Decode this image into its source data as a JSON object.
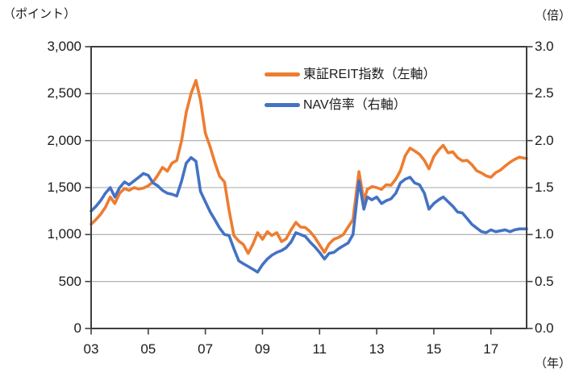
{
  "chart_data": {
    "type": "line",
    "title": "",
    "x": [
      2003.0,
      2003.17,
      2003.33,
      2003.5,
      2003.67,
      2003.83,
      2004.0,
      2004.17,
      2004.33,
      2004.5,
      2004.67,
      2004.83,
      2005.0,
      2005.17,
      2005.33,
      2005.5,
      2005.67,
      2005.83,
      2006.0,
      2006.17,
      2006.33,
      2006.5,
      2006.67,
      2006.83,
      2007.0,
      2007.17,
      2007.33,
      2007.5,
      2007.67,
      2007.83,
      2008.0,
      2008.17,
      2008.33,
      2008.5,
      2008.67,
      2008.83,
      2009.0,
      2009.17,
      2009.33,
      2009.5,
      2009.67,
      2009.83,
      2010.0,
      2010.17,
      2010.33,
      2010.5,
      2010.67,
      2010.83,
      2011.0,
      2011.17,
      2011.33,
      2011.5,
      2011.67,
      2011.83,
      2012.0,
      2012.17,
      2012.38,
      2012.55,
      2012.67,
      2012.83,
      2013.0,
      2013.17,
      2013.33,
      2013.5,
      2013.67,
      2013.83,
      2014.0,
      2014.17,
      2014.33,
      2014.5,
      2014.67,
      2014.83,
      2015.0,
      2015.17,
      2015.33,
      2015.5,
      2015.67,
      2015.83,
      2016.0,
      2016.17,
      2016.33,
      2016.5,
      2016.67,
      2016.83,
      2017.0,
      2017.17,
      2017.33,
      2017.5,
      2017.67,
      2017.83,
      2018.0,
      2018.13,
      2018.25
    ],
    "series": [
      {
        "name": "東証REIT指数（左軸）",
        "axis": "left",
        "color": "#ED7D31",
        "values": [
          1110,
          1160,
          1215,
          1290,
          1400,
          1330,
          1440,
          1490,
          1470,
          1500,
          1485,
          1495,
          1520,
          1560,
          1630,
          1715,
          1675,
          1760,
          1790,
          2000,
          2300,
          2500,
          2641,
          2430,
          2080,
          1930,
          1770,
          1620,
          1560,
          1260,
          990,
          930,
          895,
          800,
          900,
          1020,
          950,
          1030,
          990,
          1020,
          925,
          955,
          1050,
          1130,
          1080,
          1075,
          1030,
          970,
          890,
          810,
          900,
          950,
          970,
          1000,
          1080,
          1160,
          1670,
          1360,
          1480,
          1510,
          1500,
          1480,
          1530,
          1525,
          1590,
          1680,
          1840,
          1920,
          1890,
          1855,
          1790,
          1700,
          1830,
          1900,
          1950,
          1870,
          1880,
          1820,
          1785,
          1790,
          1745,
          1680,
          1655,
          1625,
          1610,
          1660,
          1685,
          1730,
          1770,
          1800,
          1825,
          1815,
          1810
        ]
      },
      {
        "name": "NAV倍率（右軸）",
        "axis": "right",
        "color": "#4472C4",
        "values": [
          1.25,
          1.3,
          1.36,
          1.44,
          1.5,
          1.4,
          1.5,
          1.56,
          1.53,
          1.57,
          1.61,
          1.65,
          1.63,
          1.55,
          1.52,
          1.47,
          1.44,
          1.43,
          1.41,
          1.57,
          1.76,
          1.82,
          1.78,
          1.46,
          1.35,
          1.24,
          1.16,
          1.07,
          1.0,
          0.99,
          0.85,
          0.72,
          0.69,
          0.66,
          0.63,
          0.6,
          0.68,
          0.74,
          0.78,
          0.81,
          0.83,
          0.86,
          0.92,
          1.02,
          1.0,
          0.98,
          0.92,
          0.87,
          0.81,
          0.74,
          0.8,
          0.81,
          0.85,
          0.88,
          0.91,
          1.0,
          1.57,
          1.27,
          1.4,
          1.37,
          1.4,
          1.33,
          1.36,
          1.38,
          1.44,
          1.55,
          1.59,
          1.61,
          1.55,
          1.53,
          1.44,
          1.27,
          1.33,
          1.37,
          1.4,
          1.35,
          1.3,
          1.24,
          1.23,
          1.17,
          1.11,
          1.07,
          1.03,
          1.02,
          1.05,
          1.03,
          1.04,
          1.05,
          1.03,
          1.05,
          1.06,
          1.06,
          1.06
        ]
      }
    ],
    "x_axis": {
      "unit": "（年）",
      "range": [
        2003.0,
        2018.25
      ],
      "tick_years": [
        2003,
        2005,
        2007,
        2009,
        2011,
        2013,
        2015,
        2017
      ],
      "tick_labels": [
        "03",
        "05",
        "07",
        "09",
        "11",
        "13",
        "15",
        "17"
      ]
    },
    "y_left": {
      "unit": "（ポイント）",
      "range": [
        0,
        3000
      ],
      "tick_step": 500,
      "tick_labels": [
        "0",
        "500",
        "1,000",
        "1,500",
        "2,000",
        "2,500",
        "3,000"
      ]
    },
    "y_right": {
      "unit": "（倍）",
      "range": [
        0,
        3.0
      ],
      "tick_step": 0.5,
      "tick_labels": [
        "0.0",
        "0.5",
        "1.0",
        "1.5",
        "2.0",
        "2.5",
        "3.0"
      ]
    },
    "grid": "horizontal-only",
    "legend_position": "top-right-inside"
  },
  "colors": {
    "reit_line": "#ED7D31",
    "nav_line": "#4472C4",
    "gridline": "#A8A8A8",
    "axis_box": "#3F3F3F",
    "text": "#1A1A1A",
    "background": "#FFFFFF"
  }
}
